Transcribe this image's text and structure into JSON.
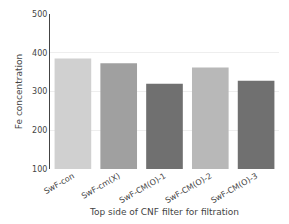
{
  "chart_data": {
    "type": "bar",
    "categories": [
      "SwF-con",
      "SwF-cm(X)",
      "SwF-CM(O)-1",
      "SwF-CM(O)-2",
      "SwF-CM(O)-3"
    ],
    "values": [
      385,
      373,
      320,
      362,
      328
    ],
    "colors": [
      "#d0d0d0",
      "#a0a0a0",
      "#707070",
      "#b8b8b8",
      "#707070"
    ],
    "ylim": [
      100,
      500
    ],
    "yticks": [
      100,
      200,
      300,
      400,
      500
    ],
    "ylabel": "Fe concentration",
    "xlabel": "Top side of CNF filter for filtration",
    "grid": true
  }
}
